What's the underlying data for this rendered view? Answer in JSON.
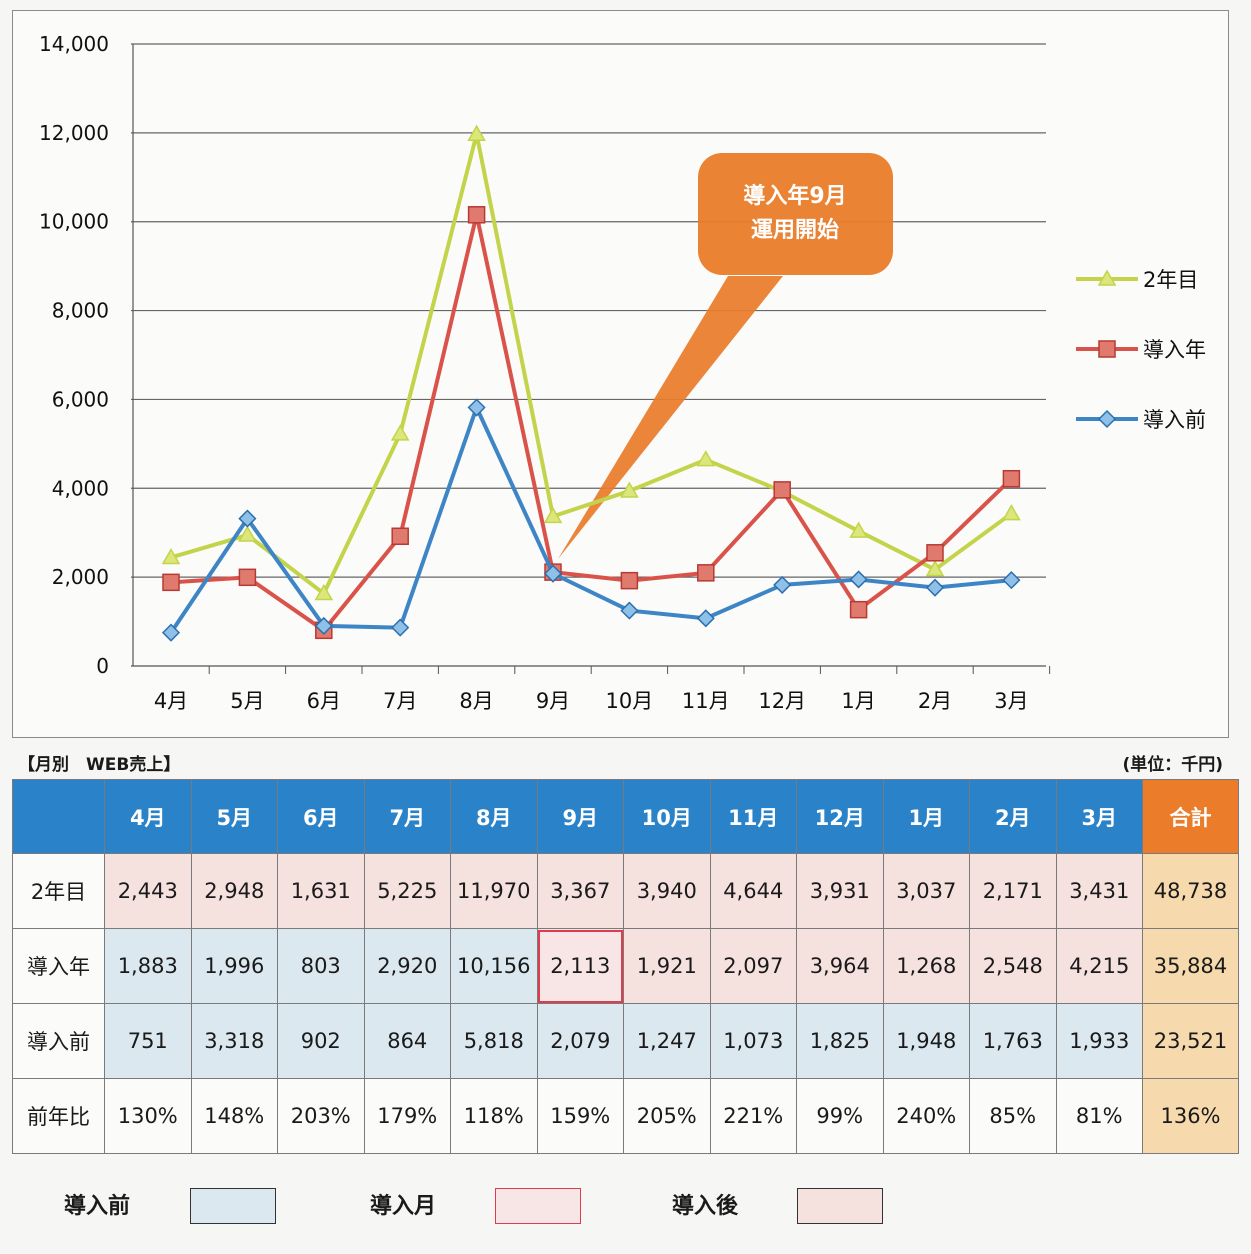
{
  "chart_data": {
    "type": "line",
    "categories": [
      "4月",
      "5月",
      "6月",
      "7月",
      "8月",
      "9月",
      "10月",
      "11月",
      "12月",
      "1月",
      "2月",
      "3月"
    ],
    "series": [
      {
        "name": "2年目",
        "color": "#c3d44a",
        "marker": "triangle",
        "values": [
          2443,
          2948,
          1631,
          5225,
          11970,
          3367,
          3940,
          4644,
          3931,
          3037,
          2171,
          3431
        ]
      },
      {
        "name": "導入年",
        "color": "#d9534a",
        "marker": "square",
        "values": [
          1883,
          1996,
          803,
          2920,
          10156,
          2113,
          1921,
          2097,
          3964,
          1268,
          2548,
          4215
        ]
      },
      {
        "name": "導入前",
        "color": "#3e85c6",
        "marker": "diamond",
        "values": [
          751,
          3318,
          902,
          864,
          5818,
          2079,
          1247,
          1073,
          1825,
          1948,
          1763,
          1933
        ]
      }
    ],
    "ylim": [
      0,
      14000
    ],
    "yticks": [
      "0",
      "2,000",
      "4,000",
      "6,000",
      "8,000",
      "10,000",
      "12,000",
      "14,000"
    ],
    "legend_position": "right",
    "grid": true,
    "callout": {
      "line1": "導入年9月",
      "line2": "運用開始",
      "points_to": "9月",
      "color": "#ea7c2a"
    }
  },
  "table": {
    "title": "【月別　WEB売上】",
    "unit": "(単位：千円)",
    "headers": [
      "4月",
      "5月",
      "6月",
      "7月",
      "8月",
      "9月",
      "10月",
      "11月",
      "12月",
      "1月",
      "2月",
      "3月",
      "合計"
    ],
    "rows": [
      {
        "label": "2年目",
        "cells": [
          "2,443",
          "2,948",
          "1,631",
          "5,225",
          "11,970",
          "3,367",
          "3,940",
          "4,644",
          "3,931",
          "3,037",
          "2,171",
          "3,431",
          "48,738"
        ]
      },
      {
        "label": "導入年",
        "cells": [
          "1,883",
          "1,996",
          "803",
          "2,920",
          "10,156",
          "2,113",
          "1,921",
          "2,097",
          "3,964",
          "1,268",
          "2,548",
          "4,215",
          "35,884"
        ]
      },
      {
        "label": "導入前",
        "cells": [
          "751",
          "3,318",
          "902",
          "864",
          "5,818",
          "2,079",
          "1,247",
          "1,073",
          "1,825",
          "1,948",
          "1,763",
          "1,933",
          "23,521"
        ]
      },
      {
        "label": "前年比",
        "cells": [
          "130%",
          "148%",
          "203%",
          "179%",
          "118%",
          "159%",
          "205%",
          "221%",
          "99%",
          "240%",
          "85%",
          "81%",
          "136%"
        ]
      }
    ]
  },
  "key": {
    "pre": {
      "label": "導入前",
      "color": "#dbe8ef"
    },
    "intro": {
      "label": "導入月",
      "color": "#f8e6e6",
      "border": "#e03c50"
    },
    "post": {
      "label": "導入後",
      "color": "#f5e1de"
    }
  }
}
